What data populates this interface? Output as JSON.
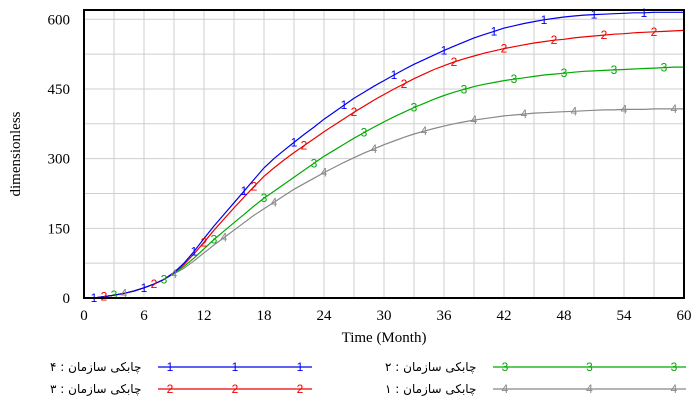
{
  "chart_data": {
    "type": "line",
    "title": "",
    "xlabel": "Time (Month)",
    "ylabel": "dimensionless",
    "xlim": [
      0,
      60
    ],
    "ylim": [
      0,
      620
    ],
    "x_ticks": [
      0,
      6,
      12,
      18,
      24,
      30,
      36,
      42,
      48,
      54,
      60
    ],
    "y_ticks": [
      0,
      150,
      300,
      450,
      600
    ],
    "x_tick_labels": [
      "0",
      "6",
      "12",
      "18",
      "24",
      "30",
      "36",
      "42",
      "48",
      "54",
      "60"
    ],
    "y_tick_labels": [
      "0",
      "150",
      "300",
      "450",
      "600"
    ],
    "grid": true,
    "legend_position": "bottom",
    "x": [
      0,
      1,
      2,
      3,
      4,
      5,
      6,
      7,
      8,
      9,
      10,
      11,
      12,
      13,
      14,
      15,
      16,
      17,
      18,
      19,
      20,
      21,
      22,
      23,
      24,
      25,
      26,
      27,
      28,
      29,
      30,
      31,
      32,
      33,
      34,
      35,
      36,
      37,
      38,
      39,
      40,
      41,
      42,
      43,
      44,
      45,
      46,
      47,
      48,
      49,
      50,
      51,
      52,
      53,
      54,
      55,
      56,
      57,
      58,
      59,
      60
    ],
    "series": [
      {
        "name": "چابکی سازمان : ۴",
        "marker": "1",
        "color": "#0000ee",
        "values": [
          0,
          0,
          3,
          6,
          10,
          15,
          22,
          30,
          40,
          55,
          75,
          100,
          128,
          155,
          180,
          205,
          230,
          255,
          280,
          300,
          318,
          335,
          352,
          368,
          385,
          400,
          415,
          430,
          443,
          456,
          468,
          480,
          492,
          503,
          513,
          523,
          533,
          542,
          551,
          560,
          567,
          574,
          581,
          586,
          591,
          595,
          599,
          602,
          605,
          607,
          609,
          610,
          611,
          612,
          613,
          614,
          614,
          615,
          615,
          615,
          615
        ]
      },
      {
        "name": "چابکی سازمان : ۳",
        "marker": "2",
        "color": "#ee0000",
        "values": [
          0,
          0,
          3,
          6,
          10,
          15,
          22,
          30,
          40,
          55,
          72,
          95,
          120,
          146,
          170,
          194,
          217,
          240,
          262,
          280,
          297,
          313,
          328,
          343,
          358,
          372,
          386,
          400,
          413,
          426,
          438,
          450,
          461,
          472,
          482,
          492,
          500,
          508,
          515,
          521,
          527,
          532,
          537,
          541,
          545,
          549,
          552,
          555,
          557,
          560,
          562,
          564,
          566,
          568,
          569,
          571,
          572,
          573,
          574,
          575,
          576
        ]
      },
      {
        "name": "چابکی سازمان : ۲",
        "marker": "3",
        "color": "#00aa00",
        "values": [
          0,
          0,
          3,
          6,
          10,
          15,
          22,
          30,
          40,
          53,
          68,
          86,
          106,
          126,
          144,
          162,
          180,
          198,
          215,
          230,
          245,
          260,
          275,
          290,
          305,
          318,
          331,
          344,
          356,
          368,
          379,
          390,
          400,
          410,
          419,
          428,
          436,
          443,
          449,
          455,
          460,
          464,
          468,
          471,
          474,
          477,
          480,
          482,
          484,
          486,
          488,
          489,
          490,
          491,
          492,
          493,
          494,
          495,
          496,
          497,
          497
        ]
      },
      {
        "name": "چابکی سازمان : ۱",
        "marker": "4",
        "color": "#888888",
        "values": [
          0,
          0,
          3,
          6,
          10,
          15,
          22,
          30,
          40,
          52,
          64,
          80,
          97,
          114,
          130,
          146,
          162,
          178,
          192,
          206,
          220,
          234,
          246,
          258,
          270,
          281,
          292,
          302,
          312,
          321,
          330,
          338,
          346,
          353,
          359,
          365,
          370,
          375,
          379,
          383,
          386,
          389,
          392,
          394,
          396,
          398,
          399,
          400,
          401,
          402,
          403,
          404,
          405,
          405,
          406,
          406,
          406,
          407,
          407,
          407,
          407
        ]
      }
    ]
  }
}
